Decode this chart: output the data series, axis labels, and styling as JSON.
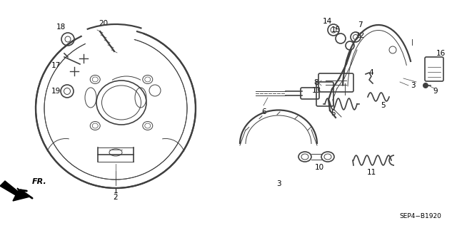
{
  "bg_color": "#ffffff",
  "line_color": "#404040",
  "label_color": "#000000",
  "diagram_code": "SEP4−B1920",
  "figsize": [
    6.4,
    3.2
  ],
  "dpi": 100,
  "xlim": [
    0,
    640
  ],
  "ylim": [
    0,
    320
  ]
}
